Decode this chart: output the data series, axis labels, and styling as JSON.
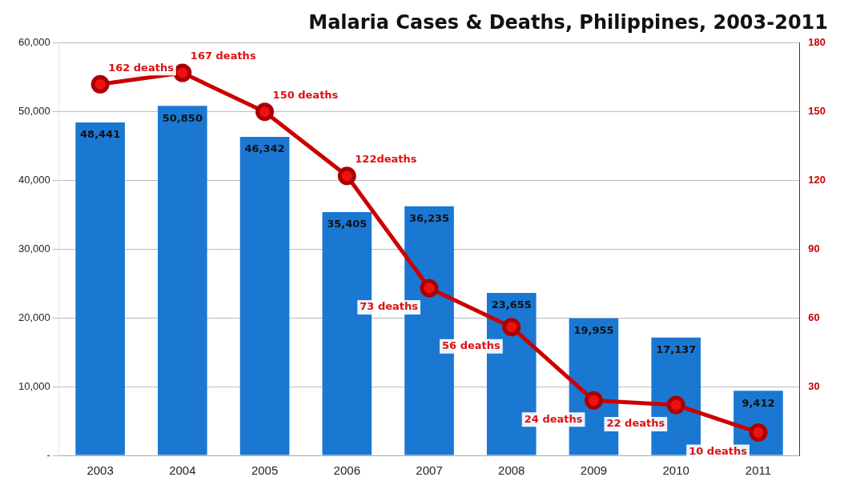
{
  "chart_data": {
    "type": "bar",
    "title": "Malaria Cases & Deaths, Philippines, 2003-2011",
    "categories": [
      "2003",
      "2004",
      "2005",
      "2006",
      "2007",
      "2008",
      "2009",
      "2010",
      "2011"
    ],
    "series": [
      {
        "color": "#1a78d2",
        "values": [
          48441,
          50850,
          46342,
          35405,
          36235,
          23655,
          19955,
          17137,
          9412
        ],
        "value_labels": [
          "48,441",
          "50,850",
          "46,342",
          "35,405",
          "36,235",
          "23,655",
          "19,955",
          "17,137",
          "9,412"
        ]
      },
      {
        "type": "line",
        "axis": "y2",
        "color": "#cc0000",
        "marker": "circle",
        "values": [
          162,
          167,
          150,
          122,
          73,
          56,
          24,
          22,
          10
        ],
        "value_labels": [
          "162 deaths",
          "167 deaths",
          "150 deaths",
          "122deaths",
          "73 deaths",
          "56 deaths",
          "24 deaths",
          "22 deaths",
          "10 deaths"
        ]
      }
    ],
    "ylim": [
      0,
      60000
    ],
    "yticks": [
      {
        "value": 0,
        "label": "-"
      },
      {
        "value": 10000,
        "label": "10,000"
      },
      {
        "value": 20000,
        "label": "20,000"
      },
      {
        "value": 30000,
        "label": "30,000"
      },
      {
        "value": 40000,
        "label": "40,000"
      },
      {
        "value": 50000,
        "label": "50,000"
      },
      {
        "value": 60000,
        "label": "60,000"
      }
    ],
    "y2lim": [
      0,
      180
    ],
    "y2ticks": [
      30,
      60,
      90,
      120,
      150,
      180
    ],
    "grid": "y",
    "legend": false
  }
}
